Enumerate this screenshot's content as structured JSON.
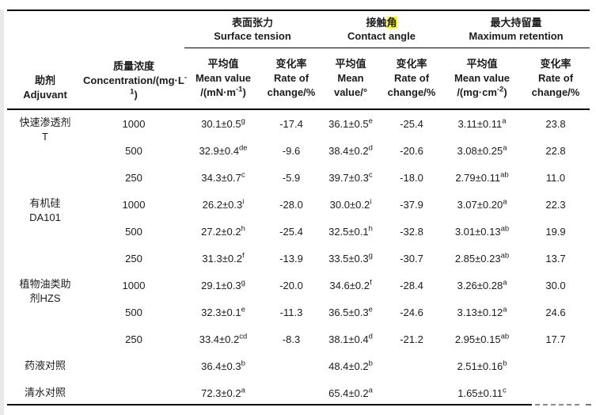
{
  "colors": {
    "text": "#1c1c1c",
    "rule": "#000000",
    "highlight": "#ffff00",
    "faded_rule": "#8a8a8a",
    "page_left_border": "#e9e9eb"
  },
  "header": {
    "adjuvant": {
      "zh": "助剂",
      "en": "Adjuvant"
    },
    "concentration": {
      "zh": "质量浓度",
      "en": "Concentration/(mg·L{-1})"
    },
    "groups": [
      {
        "zh": "表面张力",
        "en": "Surface tension"
      },
      {
        "zh": "接触[角]",
        "en": "Contact angle"
      },
      {
        "zh": "最大持留量",
        "en": "Maximum retention"
      }
    ],
    "subcols": [
      {
        "key": "surface-tension-mean",
        "lines": [
          "平均值",
          "Mean value",
          "/(mN·m{-1})"
        ]
      },
      {
        "key": "surface-tension-rate",
        "lines": [
          "变化率",
          "Rate of",
          "change/%"
        ]
      },
      {
        "key": "contact-angle-mean",
        "lines": [
          "平均值",
          "Mean",
          "value/°"
        ]
      },
      {
        "key": "contact-angle-rate",
        "lines": [
          "变化率",
          "Rate of",
          "change/%"
        ]
      },
      {
        "key": "max-retention-mean",
        "lines": [
          "平均值",
          "Mean value",
          "/(mg·cm{-2})"
        ]
      },
      {
        "key": "max-retention-rate",
        "lines": [
          "变化率",
          "Rate of",
          "change/%"
        ]
      }
    ]
  },
  "table": {
    "cell_names": [
      "surface-tension-mean-value",
      "surface-tension-rate-of-change",
      "contact-angle-mean-value",
      "contact-angle-rate-of-change",
      "max-retention-mean-value",
      "max-retention-rate-of-change"
    ],
    "groups": [
      {
        "adjuvant": [
          "快速渗透剂",
          "T"
        ],
        "rows": [
          {
            "conc": "1000",
            "cells": [
              "30.1±0.5{g}",
              "-17.4",
              "36.1±0.5{e}",
              "-25.4",
              "3.11±0.11{a}",
              "23.8"
            ]
          },
          {
            "conc": "500",
            "cells": [
              "32.9±0.4{de}",
              "-9.6",
              "38.4±0.2{d}",
              "-20.6",
              "3.08±0.25{a}",
              "22.8"
            ]
          },
          {
            "conc": "250",
            "cells": [
              "34.3±0.7{c}",
              "-5.9",
              "39.7±0.3{c}",
              "-18.0",
              "2.79±0.11{ab}",
              "11.0"
            ]
          }
        ]
      },
      {
        "adjuvant": [
          "有机硅",
          "DA101"
        ],
        "rows": [
          {
            "conc": "1000",
            "cells": [
              "26.2±0.3{i}",
              "-28.0",
              "30.0±0.2{i}",
              "-37.9",
              "3.07±0.20{a}",
              "22.3"
            ]
          },
          {
            "conc": "500",
            "cells": [
              "27.2±0.2{h}",
              "-25.4",
              "32.5±0.1{h}",
              "-32.8",
              "3.01±0.13{ab}",
              "19.9"
            ]
          },
          {
            "conc": "250",
            "cells": [
              "31.3±0.2{f}",
              "-13.9",
              "33.5±0.3{g}",
              "-30.7",
              "2.85±0.23{ab}",
              "13.7"
            ]
          }
        ]
      },
      {
        "adjuvant": [
          "植物油类助",
          "剂HZS"
        ],
        "rows": [
          {
            "conc": "1000",
            "cells": [
              "29.1±0.3{g}",
              "-20.0",
              "34.6±0.2{f}",
              "-28.4",
              "3.26±0.28{a}",
              "30.0"
            ]
          },
          {
            "conc": "500",
            "cells": [
              "32.3±0.1{e}",
              "-11.3",
              "36.5±0.3{e}",
              "-24.6",
              "3.13±0.12{a}",
              "24.6"
            ]
          },
          {
            "conc": "250",
            "cells": [
              "33.4±0.2{cd}",
              "-8.3",
              "38.1±0.4{d}",
              "-21.2",
              "2.95±0.15{ab}",
              "17.7"
            ]
          }
        ]
      },
      {
        "adjuvant": [
          "药液对照"
        ],
        "rows": [
          {
            "conc": "",
            "cells": [
              "36.4±0.3{b}",
              "",
              "48.4±0.2{b}",
              "",
              "2.51±0.16{b}",
              ""
            ]
          }
        ]
      },
      {
        "adjuvant": [
          "清水对照"
        ],
        "rows": [
          {
            "conc": "",
            "cells": [
              "72.3±0.2{a}",
              "",
              "65.4±0.2{a}",
              "",
              "1.65±0.11{c}",
              ""
            ]
          }
        ]
      }
    ]
  }
}
